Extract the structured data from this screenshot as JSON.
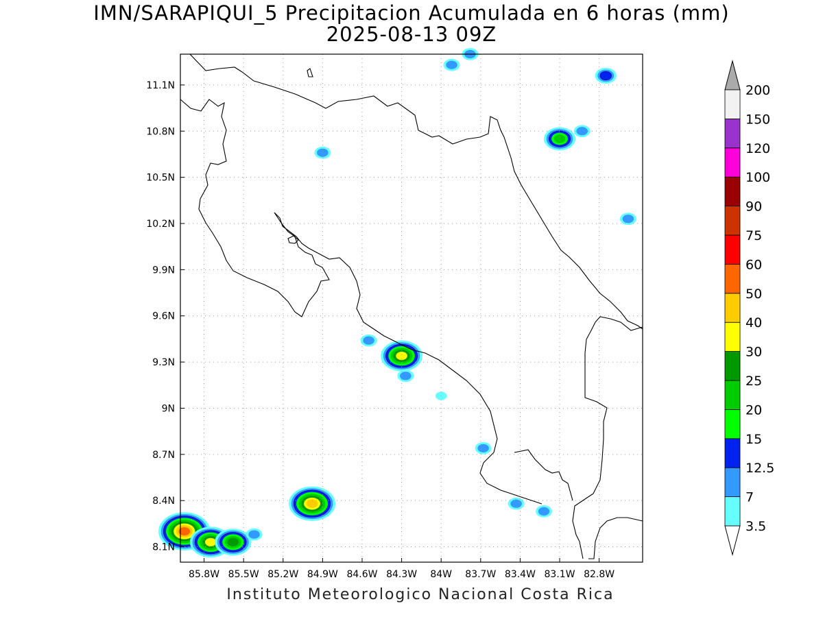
{
  "title": "IMN/SARAPIQUI_5 Precipitacion Acumulada en 6 horas (mm)",
  "subtitle": "2025-08-13 09Z",
  "credit": "Instituto Meteorologico Nacional Costa Rica",
  "map": {
    "lon_range": [
      -85.98,
      -82.47
    ],
    "lat_range": [
      8.0,
      11.3
    ],
    "lon_ticks": [
      {
        "value": -85.8,
        "label": "85.8W"
      },
      {
        "value": -85.5,
        "label": "85.5W"
      },
      {
        "value": -85.2,
        "label": "85.2W"
      },
      {
        "value": -84.9,
        "label": "84.9W"
      },
      {
        "value": -84.6,
        "label": "84.6W"
      },
      {
        "value": -84.3,
        "label": "84.3W"
      },
      {
        "value": -84.0,
        "label": "84W"
      },
      {
        "value": -83.7,
        "label": "83.7W"
      },
      {
        "value": -83.4,
        "label": "83.4W"
      },
      {
        "value": -83.1,
        "label": "83.1W"
      },
      {
        "value": -82.8,
        "label": "82.8W"
      }
    ],
    "lat_ticks": [
      {
        "value": 8.1,
        "label": "8.1N"
      },
      {
        "value": 8.4,
        "label": "8.4N"
      },
      {
        "value": 8.7,
        "label": "8.7N"
      },
      {
        "value": 9.0,
        "label": "9N"
      },
      {
        "value": 9.3,
        "label": "9.3N"
      },
      {
        "value": 9.6,
        "label": "9.6N"
      },
      {
        "value": 9.9,
        "label": "9.9N"
      },
      {
        "value": 10.2,
        "label": "10.2N"
      },
      {
        "value": 10.5,
        "label": "10.5N"
      },
      {
        "value": 10.8,
        "label": "10.8N"
      },
      {
        "value": 11.1,
        "label": "11.1N"
      }
    ],
    "grid": "dotted"
  },
  "colorbar": {
    "levels": [
      "3.5",
      "7",
      "12.5",
      "15",
      "20",
      "25",
      "30",
      "40",
      "50",
      "60",
      "75",
      "90",
      "100",
      "120",
      "150",
      "200"
    ],
    "colors": [
      "#66ffff",
      "#3399ff",
      "#0022ee",
      "#00ff00",
      "#00cc00",
      "#009900",
      "#ffff00",
      "#ffcc00",
      "#ff6600",
      "#ff0000",
      "#cc3300",
      "#990000",
      "#ff00dd",
      "#9933cc",
      "#f2f2f2",
      "#aaaaaa"
    ]
  },
  "precip_cells": [
    {
      "lon": -85.95,
      "lat": 8.2,
      "max_level": "50"
    },
    {
      "lon": -85.75,
      "lat": 8.13,
      "max_level": "30"
    },
    {
      "lon": -85.58,
      "lat": 8.13,
      "max_level": "25"
    },
    {
      "lon": -85.42,
      "lat": 8.18,
      "max_level": "7"
    },
    {
      "lon": -84.98,
      "lat": 8.38,
      "max_level": "40"
    },
    {
      "lon": -84.3,
      "lat": 9.34,
      "max_level": "30"
    },
    {
      "lon": -84.27,
      "lat": 9.21,
      "max_level": "7"
    },
    {
      "lon": -84.55,
      "lat": 9.44,
      "max_level": "7"
    },
    {
      "lon": -84.0,
      "lat": 9.08,
      "max_level": "3.5"
    },
    {
      "lon": -83.68,
      "lat": 8.74,
      "max_level": "7"
    },
    {
      "lon": -83.43,
      "lat": 8.38,
      "max_level": "7"
    },
    {
      "lon": -83.22,
      "lat": 8.33,
      "max_level": "7"
    },
    {
      "lon": -84.9,
      "lat": 10.66,
      "max_level": "7"
    },
    {
      "lon": -83.1,
      "lat": 10.75,
      "max_level": "20"
    },
    {
      "lon": -82.93,
      "lat": 10.8,
      "max_level": "7"
    },
    {
      "lon": -82.75,
      "lat": 11.16,
      "max_level": "12.5"
    },
    {
      "lon": -82.58,
      "lat": 10.23,
      "max_level": "7"
    },
    {
      "lon": -83.92,
      "lat": 11.23,
      "max_level": "7"
    },
    {
      "lon": -83.78,
      "lat": 11.3,
      "max_level": "7"
    }
  ]
}
